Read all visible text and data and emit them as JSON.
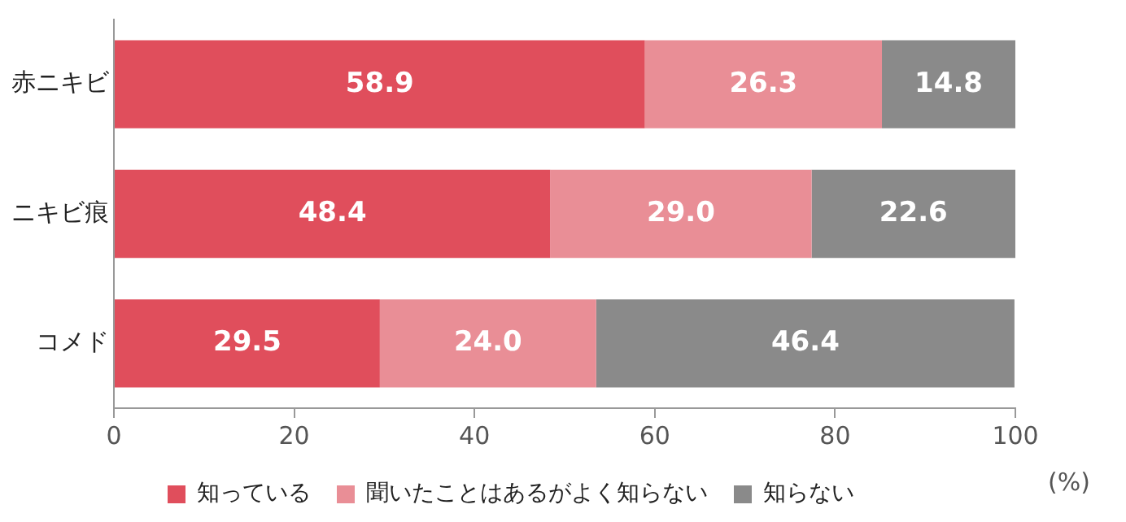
{
  "chart_data": {
    "type": "bar",
    "orientation": "horizontal",
    "stacked": true,
    "categories": [
      "赤ニキビ",
      "ニキビ痕",
      "コメド"
    ],
    "series": [
      {
        "name": "知っている",
        "color": "#e04e5c",
        "values": [
          58.9,
          48.4,
          29.5
        ]
      },
      {
        "name": "聞いたことはあるがよく知らない",
        "color": "#e98e96",
        "values": [
          26.3,
          29.0,
          24.0
        ]
      },
      {
        "name": "知らない",
        "color": "#8a8a8a",
        "values": [
          14.8,
          22.6,
          46.4
        ]
      }
    ],
    "value_labels": [
      [
        "58.9",
        "48.4",
        "29.5"
      ],
      [
        "26.3",
        "29.0",
        "24.0"
      ],
      [
        "14.8",
        "22.6",
        "46.4"
      ]
    ],
    "xlabel": "(%)",
    "xlim": [
      0,
      100
    ],
    "xticks": [
      0,
      20,
      40,
      60,
      80,
      100
    ],
    "grid": false,
    "legend": "bottom"
  }
}
